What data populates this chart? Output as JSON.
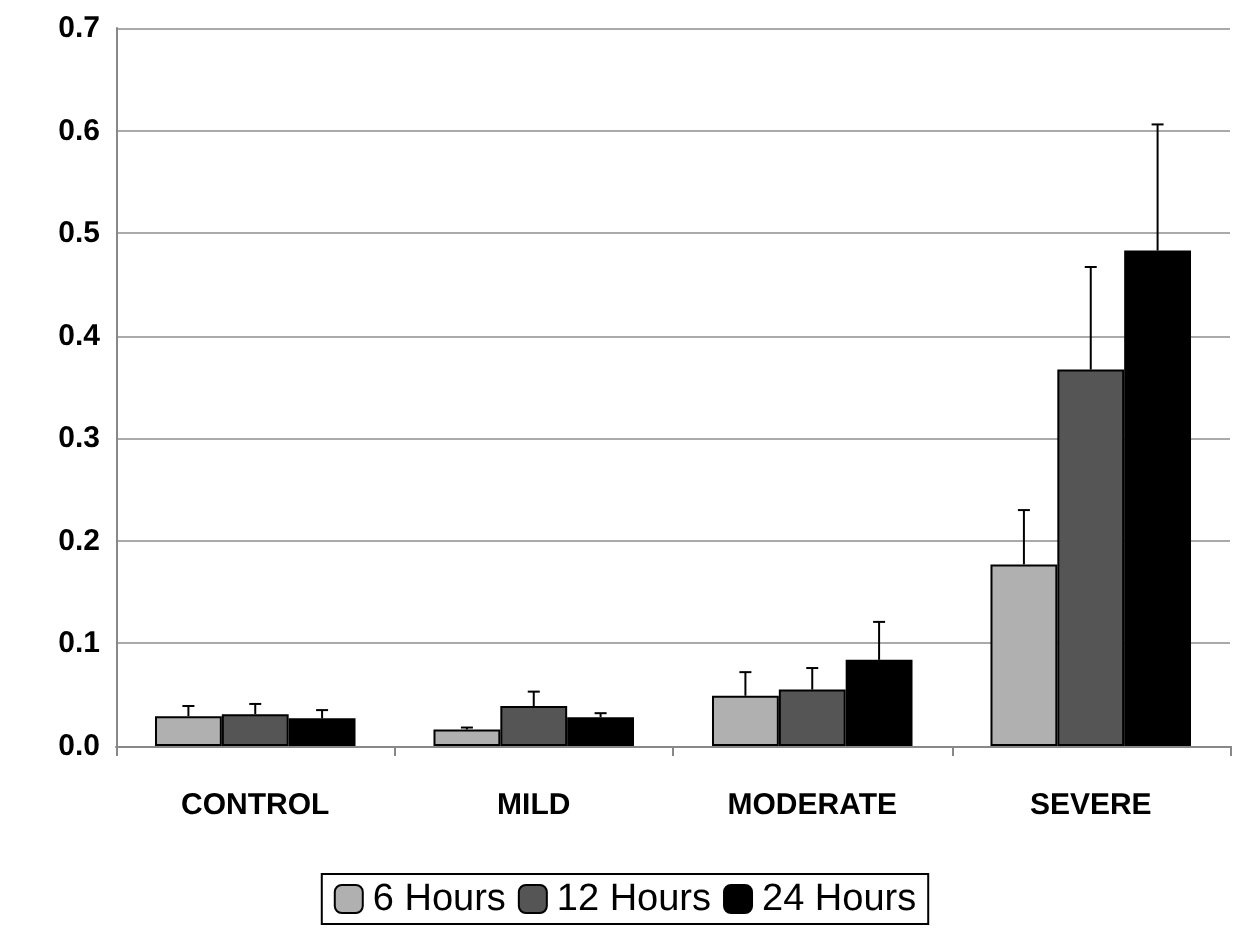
{
  "chart_data": {
    "type": "bar",
    "categories": [
      "CONTROL",
      "MILD",
      "MODERATE",
      "SEVERE"
    ],
    "series": [
      {
        "name": "6 Hours",
        "color": "#b0b0b0",
        "values": [
          0.029,
          0.016,
          0.049,
          0.177
        ],
        "errors": [
          0.01,
          0.002,
          0.023,
          0.053
        ]
      },
      {
        "name": "12 Hours",
        "color": "#555555",
        "values": [
          0.031,
          0.039,
          0.055,
          0.367
        ],
        "errors": [
          0.01,
          0.014,
          0.021,
          0.1
        ]
      },
      {
        "name": "24 Hours",
        "color": "#000000",
        "values": [
          0.027,
          0.028,
          0.084,
          0.483
        ],
        "errors": [
          0.008,
          0.004,
          0.037,
          0.123
        ]
      }
    ],
    "ylim": [
      0,
      0.7
    ],
    "yticks": [
      {
        "value": 0,
        "label": "0.0"
      },
      {
        "value": 0.1,
        "label": "0.1"
      },
      {
        "value": 0.2,
        "label": "0.2"
      },
      {
        "value": 0.3,
        "label": "0.3"
      },
      {
        "value": 0.4,
        "label": "0.4"
      },
      {
        "value": 0.5,
        "label": "0.5"
      },
      {
        "value": 0.6,
        "label": "0.6"
      },
      {
        "value": 0.7,
        "label": "0.7"
      }
    ],
    "grid": "y",
    "legend": "bottom"
  }
}
